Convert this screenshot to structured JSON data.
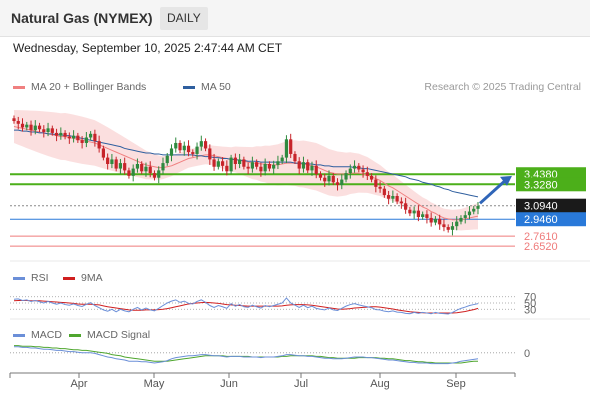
{
  "header": {
    "title": "Natural Gas (NYMEX)",
    "period": "DAILY"
  },
  "datetime": "Wednesday, September 10, 2025 2:47:44 AM CET",
  "colors": {
    "up": "#2f8a3f",
    "down": "#c7242a",
    "bollinger_fill": "#fbdcdc",
    "ma20": "#f08080",
    "ma50": "#2f5f9f",
    "resistance": "#4caf1a",
    "support": "#2979d9",
    "support2": "#ef7b7b",
    "current": "#1a1a1a",
    "rsi": "#6b8fd8",
    "rsi_ma": "#d01f1f",
    "macd": "#6b8fd8",
    "macd_signal": "#4fa62e",
    "arrow": "#2f65b8"
  },
  "icons": {
    "prediction_arrow": "arrow-up-right-icon"
  },
  "chart_data": [
    {
      "type": "candlestick",
      "name": "price",
      "legend": [
        {
          "label": "MA 20 + Bollinger Bands",
          "color": "#f08080"
        },
        {
          "label": "MA 50",
          "color": "#2f5f9f"
        }
      ],
      "copyright": "Research © 2025 Trading Central",
      "x_ticks": [
        "Apr",
        "May",
        "Jun",
        "Jul",
        "Aug",
        "Sep"
      ],
      "ylim": [
        2.5,
        4.25
      ],
      "levels": [
        {
          "value": 3.438,
          "label": "3.4380",
          "kind": "resistance"
        },
        {
          "value": 3.328,
          "label": "3.3280",
          "kind": "resistance"
        },
        {
          "value": 3.094,
          "label": "3.0940",
          "kind": "current"
        },
        {
          "value": 2.946,
          "label": "2.9460",
          "kind": "support"
        },
        {
          "value": 2.761,
          "label": "2.7610",
          "kind": "support2"
        },
        {
          "value": 2.652,
          "label": "2.6520",
          "kind": "support2"
        }
      ],
      "closes": [
        4.02,
        3.99,
        3.95,
        3.98,
        3.92,
        3.97,
        3.93,
        3.9,
        3.94,
        3.89,
        3.86,
        3.89,
        3.85,
        3.83,
        3.86,
        3.81,
        3.78,
        3.84,
        3.88,
        3.8,
        3.72,
        3.62,
        3.55,
        3.6,
        3.5,
        3.56,
        3.48,
        3.42,
        3.5,
        3.55,
        3.47,
        3.52,
        3.45,
        3.4,
        3.48,
        3.56,
        3.64,
        3.72,
        3.78,
        3.7,
        3.75,
        3.68,
        3.66,
        3.74,
        3.8,
        3.72,
        3.6,
        3.52,
        3.58,
        3.53,
        3.47,
        3.62,
        3.55,
        3.6,
        3.52,
        3.5,
        3.57,
        3.52,
        3.47,
        3.55,
        3.5,
        3.54,
        3.58,
        3.62,
        3.82,
        3.66,
        3.58,
        3.5,
        3.57,
        3.48,
        3.53,
        3.44,
        3.4,
        3.36,
        3.42,
        3.35,
        3.32,
        3.38,
        3.45,
        3.5,
        3.53,
        3.49,
        3.46,
        3.42,
        3.38,
        3.3,
        3.28,
        3.21,
        3.17,
        3.2,
        3.14,
        3.12,
        3.05,
        3.01,
        3.04,
        2.97,
        3.0,
        2.96,
        2.91,
        2.95,
        2.89,
        2.86,
        2.83,
        2.87,
        2.92,
        2.96,
        2.99,
        3.03,
        3.06,
        3.09
      ],
      "ma20": [
        3.96,
        3.95,
        3.94,
        3.93,
        3.92,
        3.91,
        3.9,
        3.89,
        3.88,
        3.87,
        3.86,
        3.85,
        3.85,
        3.84,
        3.83,
        3.82,
        3.81,
        3.8,
        3.79,
        3.78,
        3.76,
        3.74,
        3.72,
        3.7,
        3.68,
        3.66,
        3.64,
        3.62,
        3.6,
        3.58,
        3.56,
        3.54,
        3.53,
        3.52,
        3.51,
        3.51,
        3.52,
        3.53,
        3.55,
        3.57,
        3.59,
        3.61,
        3.62,
        3.63,
        3.64,
        3.65,
        3.65,
        3.64,
        3.63,
        3.62,
        3.61,
        3.6,
        3.6,
        3.59,
        3.58,
        3.57,
        3.56,
        3.56,
        3.55,
        3.55,
        3.54,
        3.54,
        3.54,
        3.55,
        3.56,
        3.56,
        3.56,
        3.55,
        3.55,
        3.54,
        3.53,
        3.52,
        3.5,
        3.48,
        3.46,
        3.45,
        3.44,
        3.44,
        3.44,
        3.45,
        3.45,
        3.45,
        3.44,
        3.43,
        3.41,
        3.39,
        3.37,
        3.34,
        3.31,
        3.29,
        3.26,
        3.23,
        3.2,
        3.17,
        3.14,
        3.11,
        3.08,
        3.06,
        3.03,
        3.01,
        2.98,
        2.96,
        2.95,
        2.94,
        2.94,
        2.94,
        2.95,
        2.96,
        2.97,
        2.98
      ],
      "ma50": [
        3.92,
        3.92,
        3.91,
        3.91,
        3.9,
        3.9,
        3.89,
        3.89,
        3.88,
        3.88,
        3.87,
        3.87,
        3.86,
        3.86,
        3.85,
        3.84,
        3.83,
        3.82,
        3.81,
        3.8,
        3.79,
        3.78,
        3.77,
        3.76,
        3.75,
        3.74,
        3.72,
        3.71,
        3.7,
        3.69,
        3.68,
        3.67,
        3.67,
        3.66,
        3.66,
        3.65,
        3.65,
        3.65,
        3.65,
        3.65,
        3.65,
        3.65,
        3.65,
        3.64,
        3.64,
        3.63,
        3.63,
        3.62,
        3.62,
        3.61,
        3.61,
        3.6,
        3.6,
        3.59,
        3.59,
        3.58,
        3.58,
        3.58,
        3.57,
        3.57,
        3.57,
        3.57,
        3.57,
        3.57,
        3.57,
        3.57,
        3.56,
        3.56,
        3.56,
        3.55,
        3.55,
        3.54,
        3.54,
        3.53,
        3.53,
        3.52,
        3.52,
        3.52,
        3.52,
        3.52,
        3.51,
        3.51,
        3.5,
        3.5,
        3.49,
        3.48,
        3.47,
        3.46,
        3.45,
        3.44,
        3.43,
        3.42,
        3.41,
        3.39,
        3.38,
        3.37,
        3.35,
        3.34,
        3.33,
        3.31,
        3.3,
        3.28,
        3.27,
        3.25,
        3.24,
        3.23,
        3.22,
        3.21,
        3.2,
        3.19
      ]
    },
    {
      "type": "line",
      "name": "RSI",
      "legend": [
        {
          "label": "RSI",
          "color": "#6b8fd8"
        },
        {
          "label": "9MA",
          "color": "#d01f1f"
        }
      ],
      "levels": [
        {
          "value": 70,
          "label": "70"
        },
        {
          "value": 50,
          "label": "50"
        },
        {
          "value": 30,
          "label": "30"
        }
      ],
      "ylim": [
        15,
        85
      ],
      "rsi": [
        62,
        63,
        58,
        60,
        55,
        58,
        54,
        50,
        55,
        50,
        46,
        50,
        45,
        43,
        47,
        42,
        39,
        46,
        51,
        42,
        35,
        28,
        24,
        30,
        22,
        30,
        25,
        22,
        30,
        36,
        28,
        34,
        28,
        25,
        33,
        42,
        50,
        56,
        60,
        52,
        56,
        49,
        47,
        55,
        60,
        52,
        42,
        36,
        42,
        38,
        33,
        48,
        40,
        45,
        38,
        36,
        43,
        38,
        34,
        42,
        38,
        42,
        46,
        50,
        66,
        50,
        43,
        36,
        43,
        35,
        40,
        33,
        30,
        28,
        34,
        28,
        26,
        33,
        40,
        45,
        48,
        44,
        41,
        38,
        35,
        29,
        28,
        24,
        22,
        25,
        21,
        20,
        17,
        16,
        20,
        17,
        20,
        18,
        16,
        20,
        17,
        16,
        15,
        20,
        27,
        33,
        37,
        42,
        45,
        48
      ],
      "rsi_ma": [
        57,
        58,
        58,
        58,
        57,
        57,
        57,
        56,
        55,
        54,
        53,
        52,
        51,
        50,
        49,
        47,
        46,
        46,
        46,
        45,
        44,
        41,
        38,
        36,
        34,
        32,
        30,
        28,
        27,
        27,
        27,
        28,
        28,
        28,
        29,
        30,
        32,
        35,
        38,
        41,
        44,
        47,
        49,
        50,
        51,
        52,
        51,
        50,
        49,
        47,
        45,
        44,
        43,
        42,
        41,
        40,
        40,
        40,
        40,
        40,
        40,
        40,
        40,
        41,
        43,
        44,
        45,
        45,
        45,
        44,
        43,
        41,
        39,
        37,
        35,
        33,
        31,
        30,
        31,
        32,
        34,
        35,
        36,
        37,
        38,
        38,
        37,
        35,
        33,
        31,
        28,
        26,
        24,
        22,
        21,
        20,
        19,
        18,
        18,
        18,
        18,
        18,
        18,
        18,
        19,
        21,
        23,
        26,
        29,
        33
      ]
    },
    {
      "type": "line",
      "name": "MACD",
      "legend": [
        {
          "label": "MACD",
          "color": "#6b8fd8"
        },
        {
          "label": "MACD Signal",
          "color": "#4fa62e"
        }
      ],
      "levels": [
        {
          "value": 0,
          "label": "0"
        }
      ],
      "ylim": [
        -0.32,
        0.18
      ],
      "macd": [
        0.1,
        0.1,
        0.09,
        0.09,
        0.08,
        0.08,
        0.07,
        0.06,
        0.06,
        0.05,
        0.04,
        0.04,
        0.03,
        0.02,
        0.02,
        0.01,
        0.0,
        0.0,
        0.0,
        -0.01,
        -0.03,
        -0.05,
        -0.07,
        -0.08,
        -0.1,
        -0.11,
        -0.12,
        -0.14,
        -0.14,
        -0.14,
        -0.15,
        -0.15,
        -0.16,
        -0.17,
        -0.16,
        -0.15,
        -0.13,
        -0.1,
        -0.08,
        -0.07,
        -0.06,
        -0.05,
        -0.05,
        -0.04,
        -0.03,
        -0.03,
        -0.04,
        -0.05,
        -0.05,
        -0.06,
        -0.07,
        -0.06,
        -0.06,
        -0.06,
        -0.07,
        -0.07,
        -0.07,
        -0.07,
        -0.08,
        -0.07,
        -0.07,
        -0.07,
        -0.06,
        -0.05,
        -0.03,
        -0.03,
        -0.04,
        -0.05,
        -0.05,
        -0.06,
        -0.06,
        -0.07,
        -0.08,
        -0.09,
        -0.09,
        -0.1,
        -0.1,
        -0.1,
        -0.09,
        -0.08,
        -0.07,
        -0.07,
        -0.07,
        -0.08,
        -0.08,
        -0.09,
        -0.1,
        -0.11,
        -0.12,
        -0.12,
        -0.13,
        -0.14,
        -0.15,
        -0.16,
        -0.16,
        -0.17,
        -0.17,
        -0.17,
        -0.18,
        -0.18,
        -0.18,
        -0.18,
        -0.18,
        -0.17,
        -0.16,
        -0.14,
        -0.13,
        -0.12,
        -0.11,
        -0.1
      ],
      "signal": [
        0.12,
        0.12,
        0.11,
        0.11,
        0.11,
        0.1,
        0.1,
        0.09,
        0.09,
        0.08,
        0.08,
        0.07,
        0.07,
        0.06,
        0.05,
        0.05,
        0.04,
        0.04,
        0.03,
        0.02,
        0.01,
        0.0,
        -0.01,
        -0.03,
        -0.04,
        -0.05,
        -0.07,
        -0.08,
        -0.09,
        -0.1,
        -0.11,
        -0.12,
        -0.13,
        -0.14,
        -0.14,
        -0.14,
        -0.14,
        -0.13,
        -0.12,
        -0.11,
        -0.1,
        -0.09,
        -0.08,
        -0.07,
        -0.06,
        -0.05,
        -0.05,
        -0.05,
        -0.05,
        -0.05,
        -0.06,
        -0.06,
        -0.06,
        -0.06,
        -0.06,
        -0.06,
        -0.07,
        -0.07,
        -0.07,
        -0.07,
        -0.07,
        -0.07,
        -0.07,
        -0.06,
        -0.06,
        -0.05,
        -0.05,
        -0.05,
        -0.05,
        -0.05,
        -0.05,
        -0.06,
        -0.06,
        -0.07,
        -0.08,
        -0.08,
        -0.09,
        -0.09,
        -0.09,
        -0.09,
        -0.09,
        -0.08,
        -0.08,
        -0.08,
        -0.08,
        -0.08,
        -0.09,
        -0.09,
        -0.1,
        -0.1,
        -0.11,
        -0.12,
        -0.13,
        -0.13,
        -0.14,
        -0.15,
        -0.15,
        -0.16,
        -0.16,
        -0.17,
        -0.17,
        -0.17,
        -0.17,
        -0.17,
        -0.17,
        -0.17,
        -0.16,
        -0.15,
        -0.14,
        -0.14
      ]
    }
  ]
}
